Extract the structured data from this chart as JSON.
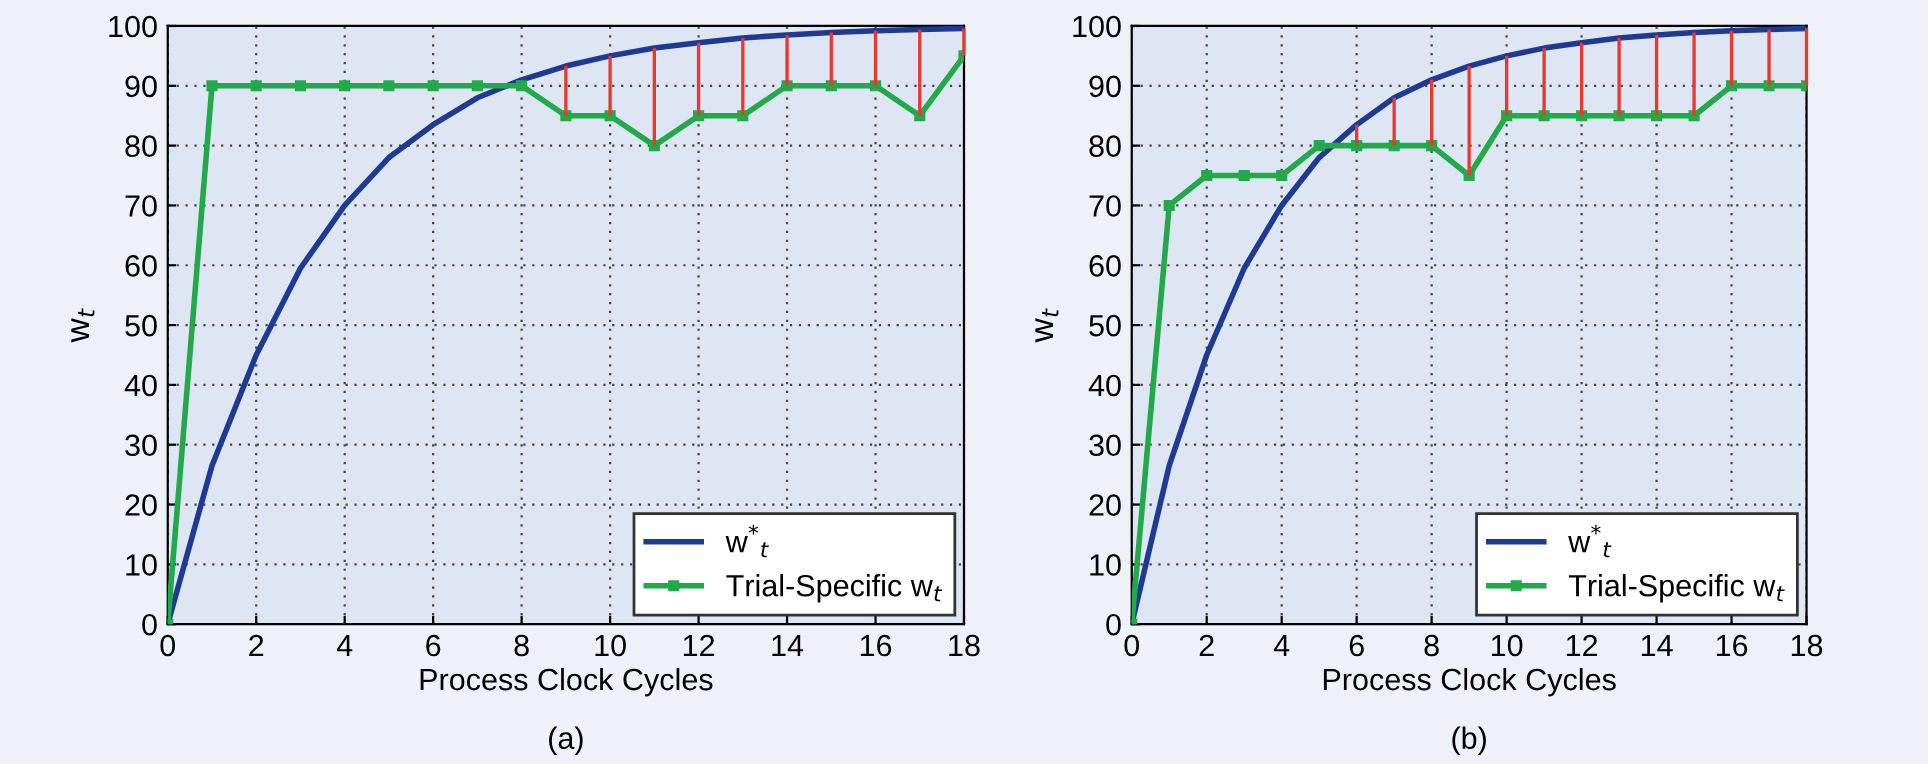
{
  "chart_data": [
    {
      "type": "line",
      "title": "(a)",
      "xlabel": "Process Clock Cycles",
      "ylabel": "w$_{t}$",
      "x": [
        0,
        1,
        2,
        3,
        4,
        5,
        6,
        7,
        8,
        9,
        10,
        11,
        12,
        13,
        14,
        15,
        16,
        17,
        18
      ],
      "xlim": [
        0,
        18
      ],
      "ylim": [
        0,
        100
      ],
      "xticks": [
        0,
        2,
        4,
        6,
        8,
        10,
        12,
        14,
        16,
        18
      ],
      "yticks": [
        0,
        10,
        20,
        30,
        40,
        50,
        60,
        70,
        80,
        90,
        100
      ],
      "grid": true,
      "legend": "bottom right",
      "series": [
        {
          "name": "w$^{*}$$_{t}$",
          "color": "#1f3a93",
          "marker": "none",
          "values": [
            0,
            26.5,
            45,
            59.5,
            70,
            78,
            83.5,
            88,
            91,
            93.3,
            95,
            96.3,
            97.2,
            98,
            98.5,
            98.9,
            99.2,
            99.4,
            99.6
          ]
        },
        {
          "name": "Trial-Specific w$_{t}$",
          "color": "#22aa4a",
          "marker": "square",
          "values": [
            0,
            90,
            90,
            90,
            90,
            90,
            90,
            90,
            90,
            85,
            85,
            80,
            85,
            85,
            90,
            90,
            90,
            85,
            95
          ],
          "errors": [
            null,
            null,
            null,
            null,
            null,
            null,
            null,
            null,
            null,
            [
              85,
              93.3
            ],
            [
              85,
              95
            ],
            [
              80,
              96.3
            ],
            [
              85,
              97.2
            ],
            [
              85,
              98
            ],
            [
              90,
              98.5
            ],
            [
              90,
              98.9
            ],
            [
              90,
              99.2
            ],
            [
              85,
              99.4
            ],
            [
              95,
              99.6
            ]
          ]
        }
      ]
    },
    {
      "type": "line",
      "title": "(b)",
      "xlabel": "Process Clock Cycles",
      "ylabel": "w$_{t}$",
      "x": [
        0,
        1,
        2,
        3,
        4,
        5,
        6,
        7,
        8,
        9,
        10,
        11,
        12,
        13,
        14,
        15,
        16,
        17,
        18
      ],
      "xlim": [
        0,
        18
      ],
      "ylim": [
        0,
        100
      ],
      "xticks": [
        0,
        2,
        4,
        6,
        8,
        10,
        12,
        14,
        16,
        18
      ],
      "yticks": [
        0,
        10,
        20,
        30,
        40,
        50,
        60,
        70,
        80,
        90,
        100
      ],
      "grid": true,
      "legend": "bottom right",
      "series": [
        {
          "name": "w$^{*}$$_{t}$",
          "color": "#1f3a93",
          "marker": "none",
          "values": [
            0,
            26.5,
            45,
            59.5,
            70,
            78,
            83.5,
            88,
            91,
            93.3,
            95,
            96.3,
            97.2,
            98,
            98.5,
            98.9,
            99.2,
            99.4,
            99.6
          ]
        },
        {
          "name": "Trial-Specific w$_{t}$",
          "color": "#22aa4a",
          "marker": "square",
          "values": [
            0,
            70,
            75,
            75,
            75,
            80,
            80,
            80,
            80,
            75,
            85,
            85,
            85,
            85,
            85,
            85,
            90,
            90,
            90
          ],
          "errors": [
            null,
            null,
            null,
            null,
            null,
            null,
            [
              80,
              83.5
            ],
            [
              80,
              88
            ],
            [
              80,
              91
            ],
            [
              75,
              93.3
            ],
            [
              85,
              95
            ],
            [
              85,
              96.3
            ],
            [
              85,
              97.2
            ],
            [
              85,
              98
            ],
            [
              85,
              98.5
            ],
            [
              85,
              98.9
            ],
            [
              90,
              99.2
            ],
            [
              90,
              99.4
            ],
            [
              90,
              99.6
            ]
          ]
        }
      ]
    }
  ]
}
